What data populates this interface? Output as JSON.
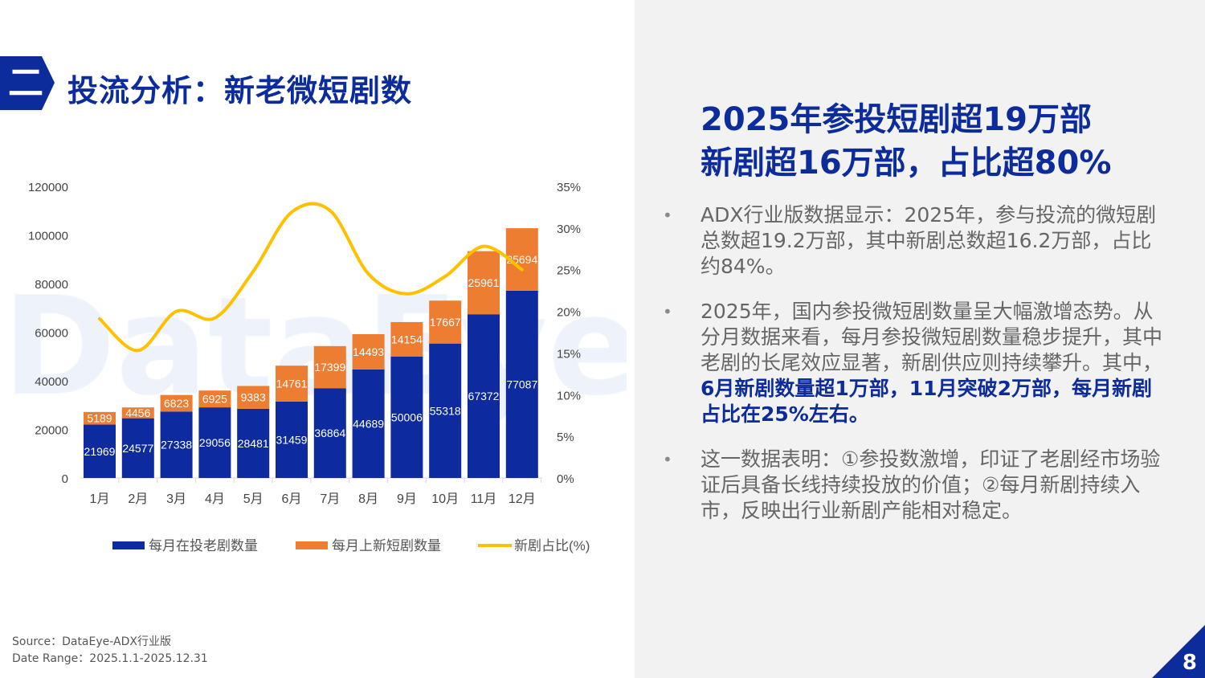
{
  "header": {
    "badge": "二",
    "title": "投流分析：新老微短剧数"
  },
  "headline": {
    "line1": "2025年参投短剧超19万部",
    "line2": "新剧超16万部，占比超80%"
  },
  "bullets": [
    {
      "segments": [
        {
          "text": "ADX行业版数据显示：2025年，参与投流的微短剧总数超19.2万部，其中新剧总数超16.2万部，占比约84%。",
          "bold": false
        }
      ]
    },
    {
      "segments": [
        {
          "text": "2025年，国内参投微短剧数量呈大幅激增态势。从分月数据来看，每月参投微短剧数量稳步提升，其中老剧的长尾效应显著，新剧供应则持续攀升。其中，",
          "bold": false
        },
        {
          "text": "6月新剧数量超1万部，11月突破2万部，每月新剧占比在25%左右。",
          "bold": true
        }
      ]
    },
    {
      "segments": [
        {
          "text": "这一数据表明：①参投数激增，印证了老剧经市场验证后具备长线持续投放的价值；②每月新剧持续入市，反映出行业新剧产能相对稳定。",
          "bold": false
        }
      ]
    }
  ],
  "bullet_marker": "•",
  "source": {
    "line1": "Source：DataEye-ADX行业版",
    "line2": "Date Range：2025.1.1-2025.12.31"
  },
  "page_number": "8",
  "watermark": "DataEye",
  "colors": {
    "old": "#0d2a9e",
    "new": "#ed7d31",
    "ratio": "#ffc000",
    "brand": "#0d2c9b"
  },
  "chart_data": {
    "type": "bar",
    "stacked": true,
    "categories": [
      "1月",
      "2月",
      "3月",
      "4月",
      "5月",
      "6月",
      "7月",
      "8月",
      "9月",
      "10月",
      "11月",
      "12月"
    ],
    "series": [
      {
        "name": "每月在投老剧数量",
        "type": "bar",
        "values": [
          21969,
          24577,
          27338,
          29056,
          28481,
          31459,
          36864,
          44689,
          50006,
          55318,
          67372,
          77087
        ]
      },
      {
        "name": "每月上新短剧数量",
        "type": "bar",
        "values": [
          5189,
          4456,
          6823,
          6925,
          9383,
          14761,
          17399,
          14493,
          14154,
          17667,
          25961,
          25694
        ]
      },
      {
        "name": "新剧占比(%)",
        "type": "line",
        "axis": "right",
        "smooth": true,
        "values": [
          19.1,
          15.3,
          20.0,
          19.2,
          24.8,
          31.9,
          32.1,
          24.5,
          22.1,
          24.2,
          27.8,
          25.0
        ]
      }
    ],
    "y_left": {
      "range": [
        0,
        120000
      ],
      "ticks": [
        "0",
        "20000",
        "40000",
        "60000",
        "80000",
        "100000",
        "120000"
      ]
    },
    "y_right": {
      "range": [
        0,
        35
      ],
      "ticks": [
        "0%",
        "5%",
        "10%",
        "15%",
        "20%",
        "25%",
        "30%",
        "35%"
      ]
    },
    "grid": false,
    "legend": "bottom"
  }
}
